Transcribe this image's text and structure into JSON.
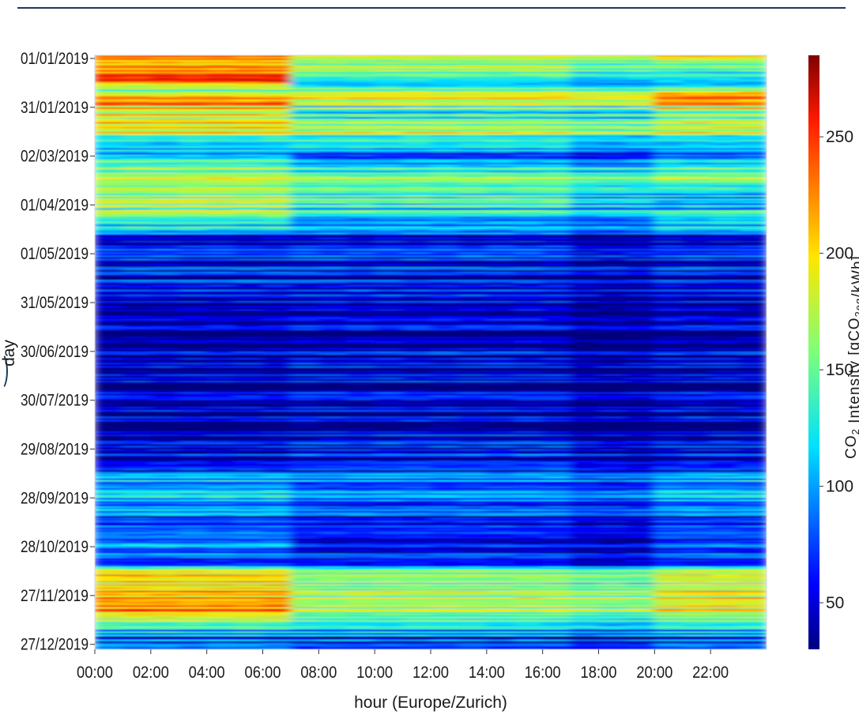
{
  "chart_data": {
    "type": "heatmap",
    "title": "",
    "xlabel": "hour (Europe/Zurich)",
    "ylabel": "day",
    "x_tick_labels": [
      "00:00",
      "02:00",
      "04:00",
      "06:00",
      "08:00",
      "10:00",
      "12:00",
      "14:00",
      "16:00",
      "18:00",
      "20:00",
      "22:00"
    ],
    "x_tick_hours": [
      0,
      2,
      4,
      6,
      8,
      10,
      12,
      14,
      16,
      18,
      20,
      22
    ],
    "y_tick_labels": [
      "01/01/2019",
      "31/01/2019",
      "02/03/2019",
      "01/04/2019",
      "01/05/2019",
      "31/05/2019",
      "30/06/2019",
      "30/07/2019",
      "29/08/2019",
      "28/09/2019",
      "28/10/2019",
      "27/11/2019",
      "27/12/2019"
    ],
    "y_tick_day_index": [
      0,
      30,
      60,
      90,
      120,
      150,
      180,
      210,
      240,
      270,
      300,
      330,
      360
    ],
    "day_count": 365,
    "hours": 24,
    "colormap": "jet",
    "colorbar": {
      "label_main": "CO",
      "label_sub1": "2",
      "label_mid": " Intensity [gCO",
      "label_sub2": "2eq",
      "label_end": "/kWh]",
      "vmin": 30,
      "vmax": 285,
      "ticks": [
        50,
        100,
        150,
        200,
        250
      ],
      "tick_labels": [
        "50",
        "100",
        "150",
        "200",
        "250"
      ]
    },
    "seasonal_profile": {
      "description_hours": "values in gCO2eq/kWh",
      "day_anchors": [
        0,
        8,
        15,
        22,
        28,
        35,
        45,
        55,
        62,
        75,
        90,
        100,
        112,
        120,
        135,
        150,
        165,
        180,
        200,
        220,
        240,
        250,
        265,
        275,
        290,
        300,
        310,
        318,
        330,
        340,
        350,
        358,
        364
      ],
      "night_values": [
        230,
        200,
        250,
        150,
        255,
        180,
        215,
        100,
        135,
        175,
        165,
        160,
        50,
        55,
        60,
        45,
        40,
        38,
        40,
        38,
        45,
        60,
        120,
        100,
        80,
        110,
        55,
        200,
        215,
        230,
        130,
        80,
        115
      ],
      "day_values": [
        180,
        150,
        110,
        170,
        200,
        120,
        195,
        115,
        90,
        160,
        135,
        120,
        55,
        60,
        55,
        50,
        48,
        45,
        48,
        45,
        55,
        75,
        95,
        80,
        70,
        65,
        55,
        160,
        175,
        170,
        115,
        75,
        95
      ],
      "evening_values": [
        205,
        120,
        100,
        190,
        250,
        150,
        200,
        100,
        110,
        165,
        90,
        145,
        50,
        55,
        55,
        45,
        45,
        42,
        45,
        42,
        50,
        65,
        115,
        95,
        75,
        90,
        55,
        180,
        195,
        195,
        120,
        80,
        110
      ]
    }
  }
}
